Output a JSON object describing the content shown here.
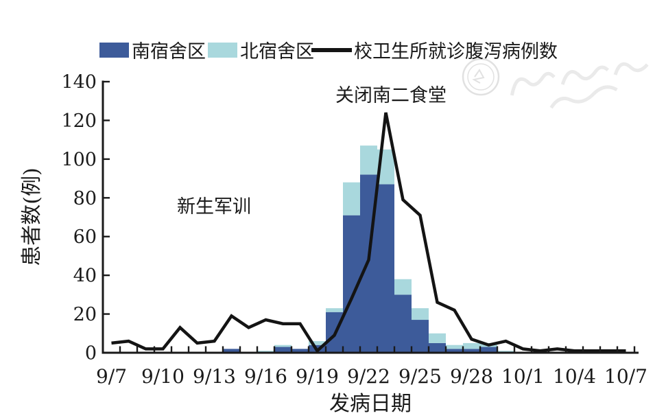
{
  "chart_data": {
    "type": "combo-bar-line",
    "x": [
      "9/7",
      "9/8",
      "9/9",
      "9/10",
      "9/11",
      "9/12",
      "9/13",
      "9/14",
      "9/15",
      "9/16",
      "9/17",
      "9/18",
      "9/19",
      "9/20",
      "9/21",
      "9/22",
      "9/23",
      "9/24",
      "9/25",
      "9/26",
      "9/27",
      "9/28",
      "9/29",
      "9/30",
      "10/1",
      "10/2",
      "10/3",
      "10/4",
      "10/5",
      "10/6",
      "10/7"
    ],
    "x_label_every": 3,
    "x_axis_label": "发病日期",
    "y_axis_label": "患者数(例)",
    "ylim": [
      0,
      140
    ],
    "yticks": [
      "0",
      "20",
      "40",
      "60",
      "80",
      "100",
      "120",
      "140"
    ],
    "legend_position": "top",
    "series": [
      {
        "name": "南宿舍区",
        "type": "bar",
        "stacked": true,
        "color": "#3d5b9a",
        "values": [
          0,
          0,
          0,
          0,
          0,
          0,
          0,
          2,
          0,
          0,
          3,
          2,
          4,
          21,
          71,
          92,
          87,
          30,
          17,
          5,
          2,
          2,
          3,
          0,
          0,
          0,
          0,
          0,
          0,
          0,
          0
        ]
      },
      {
        "name": "北宿舍区",
        "type": "bar",
        "stacked": true,
        "color": "#a9d8dd",
        "values": [
          0,
          0,
          0,
          0,
          0,
          0,
          0,
          0,
          0,
          1,
          1,
          0,
          2,
          2,
          17,
          15,
          18,
          8,
          6,
          5,
          2,
          3,
          2,
          1,
          0,
          0,
          0,
          0,
          0,
          0,
          0
        ]
      },
      {
        "name": "校卫生所就诊腹泻病例数",
        "type": "line",
        "color": "#141414",
        "values": [
          5,
          6,
          2,
          2,
          13,
          5,
          6,
          19,
          13,
          17,
          15,
          15,
          1,
          9,
          28,
          48,
          124,
          79,
          71,
          26,
          22,
          7,
          4,
          6,
          2,
          1,
          2,
          1,
          1,
          1,
          1
        ]
      }
    ],
    "annotations": [
      {
        "text": "关闭南二食堂",
        "anchor_day": "9/23",
        "y": 134
      },
      {
        "text": "新生军训",
        "anchor_day": "9/13",
        "y": 75
      }
    ]
  },
  "colors": {
    "south_bar": "#3d5b9a",
    "north_bar": "#a9d8dd",
    "clinic_line": "#141414",
    "axis": "#1a1a1a",
    "watermark": "#cccccc"
  }
}
